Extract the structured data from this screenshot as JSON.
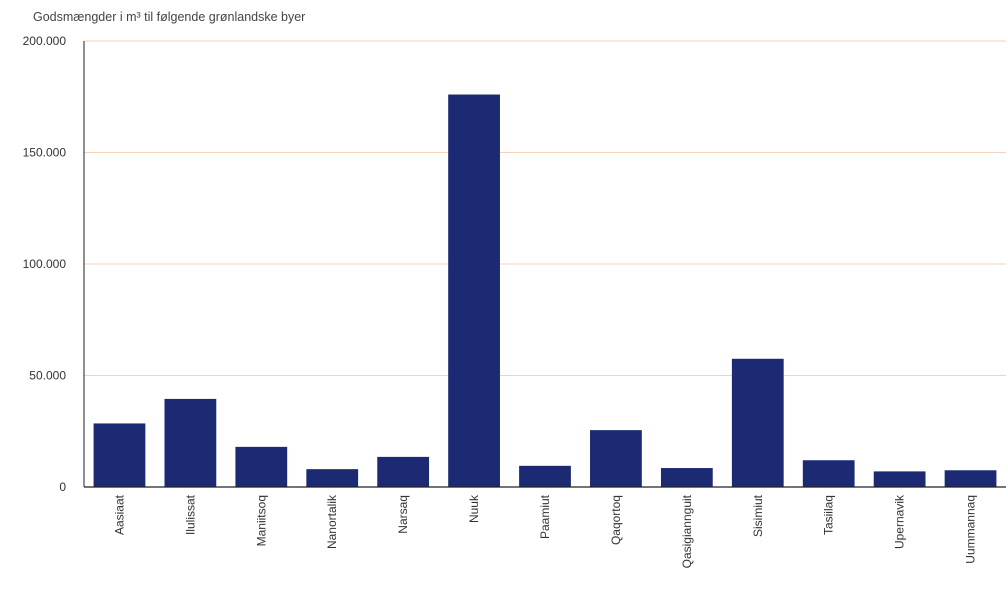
{
  "chart_data": {
    "type": "bar",
    "title": "Godsmængder i m³ til følgende grønlandske byer",
    "xlabel": "",
    "ylabel": "",
    "categories": [
      "Aasiaat",
      "Ilulissat",
      "Maniitsoq",
      "Nanortalik",
      "Narsaq",
      "Nuuk",
      "Paamiut",
      "Qaqortoq",
      "Qasigiannguit",
      "Sisimiut",
      "Tasiilaq",
      "Upernavik",
      "Uummannaq"
    ],
    "values": [
      28500,
      39500,
      18000,
      8000,
      13500,
      176000,
      9500,
      25500,
      8500,
      57500,
      12000,
      7000,
      7500
    ],
    "ylim": [
      0,
      200000
    ],
    "yticks": [
      0,
      50000,
      100000,
      150000,
      200000
    ],
    "ytick_labels": [
      "0",
      "50.000",
      "100.000",
      "150.000",
      "200.000"
    ],
    "grid": true,
    "colors": {
      "bar": "#1b2a72",
      "grid": "#f6d2b8",
      "axis": "#222222"
    }
  }
}
